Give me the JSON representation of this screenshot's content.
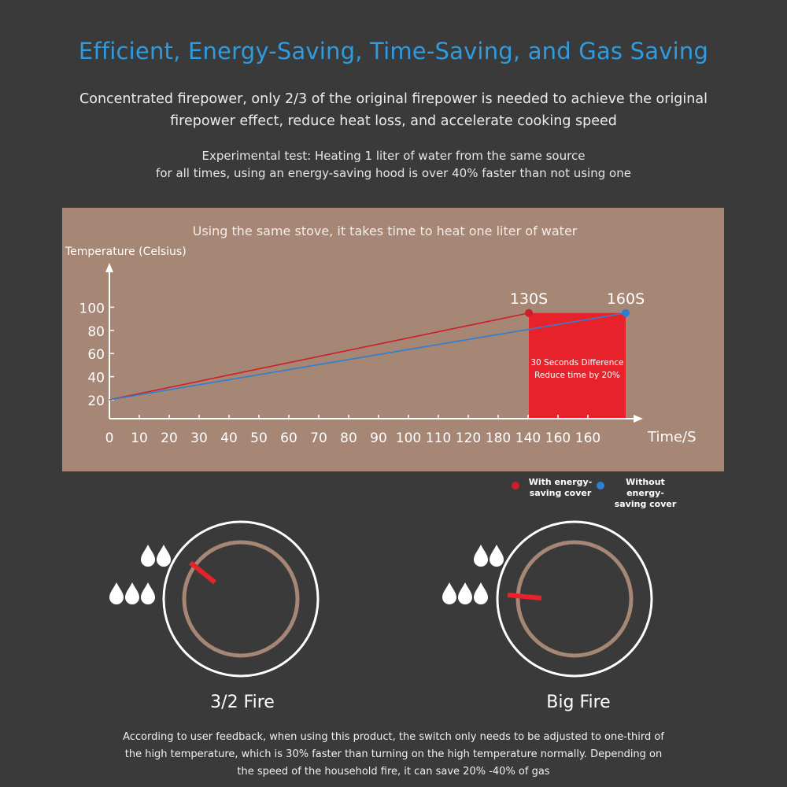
{
  "header": {
    "title": "Efficient, Energy-Saving, Time-Saving, and Gas Saving",
    "line1": "Concentrated firepower, only 2/3 of the original firepower is needed to achieve the original",
    "line2": "firepower effect, reduce heat loss, and accelerate cooking speed",
    "line3": "Experimental test: Heating 1 liter of water from the same source",
    "line4": "for all times, using an energy-saving hood is over 40% faster than not using one"
  },
  "chart_data": {
    "type": "line",
    "title": "Using the same stove, it takes time to heat one liter of water",
    "ylabel": "Temperature (Celsius)",
    "xlabel": "Time/S",
    "x_ticks": [
      "0",
      "10",
      "20",
      "30",
      "40",
      "50",
      "60",
      "70",
      "80",
      "90",
      "100",
      "110",
      "120",
      "180",
      "140",
      "160",
      "160"
    ],
    "y_ticks": [
      "20",
      "40",
      "60",
      "80",
      "100"
    ],
    "ylim": [
      0,
      120
    ],
    "grid": false,
    "legend_placement": "bottom-right",
    "series": [
      {
        "name": "With energy-saving cover",
        "color": "#cc1f2a",
        "x": [
          0,
          130
        ],
        "y": [
          20,
          95
        ],
        "end_label": "130S"
      },
      {
        "name": "Without energy-saving cover",
        "color": "#2e7fd0",
        "x": [
          0,
          160
        ],
        "y": [
          20,
          95
        ],
        "end_label": "160S"
      }
    ],
    "highlight": {
      "x_range": [
        130,
        160
      ],
      "y_top": 95,
      "color": "#e8222a",
      "text": [
        "30 Seconds Difference",
        "Reduce time by 20%"
      ]
    }
  },
  "legend": {
    "with_label": "With energy-\nsaving cover",
    "without_label": "Without energy-\nsaving cover",
    "with_color": "#cc1f2a",
    "without_color": "#2e7fd0"
  },
  "knobs": [
    {
      "label": "3/2 Fire",
      "pointer_color": "#e8222a",
      "ring_color": "#a68674"
    },
    {
      "label": "Big Fire",
      "pointer_color": "#e8222a",
      "ring_color": "#a68674"
    }
  ],
  "icons": [
    "water-drop-icon"
  ],
  "footer": {
    "line1": "According to user feedback, when using this product, the switch only needs to be adjusted to one-third of",
    "line2": "the high temperature, which is 30% faster than turning on the high temperature normally. Depending on",
    "line3": "the speed of the household fire, it can save 20% -40% of gas"
  }
}
